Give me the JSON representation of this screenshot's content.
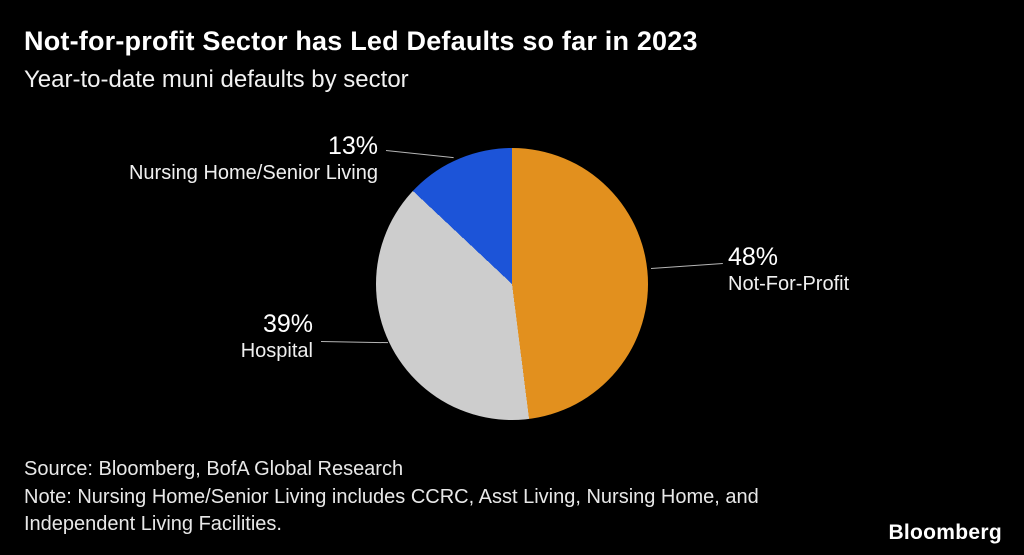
{
  "header": {
    "title": "Not-for-profit Sector has Led Defaults so far in 2023",
    "subtitle": "Year-to-date muni defaults by sector"
  },
  "chart_data": {
    "type": "pie",
    "title": "Not-for-profit Sector has Led Defaults so far in 2023",
    "subtitle": "Year-to-date muni defaults by sector",
    "start_angle_deg": 0,
    "direction": "clockwise",
    "slices": [
      {
        "label": "Not-For-Profit",
        "value": 48,
        "pct_label": "48%",
        "color": "#E2901E"
      },
      {
        "label": "Hospital",
        "value": 39,
        "pct_label": "39%",
        "color": "#CDCDCD"
      },
      {
        "label": "Nursing Home/Senior Living",
        "value": 13,
        "pct_label": "13%",
        "color": "#1C54D8"
      }
    ],
    "legend_position": "none",
    "grid": false
  },
  "footer": {
    "source": "Source: Bloomberg, BofA Global Research",
    "note_line1": "Note: Nursing Home/Senior Living includes CCRC, Asst Living, Nursing Home, and",
    "note_line2": "Independent Living Facilities.",
    "brand": "Bloomberg"
  }
}
